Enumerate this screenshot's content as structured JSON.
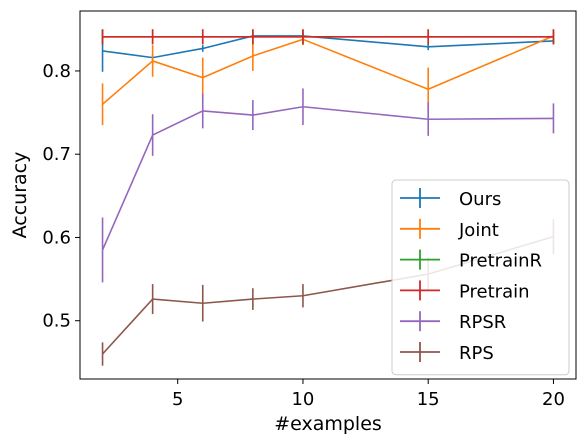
{
  "chart_data": {
    "type": "line",
    "xlabel": "#examples",
    "ylabel": "Accuracy",
    "xlim": [
      1.1,
      20.9
    ],
    "ylim": [
      0.43,
      0.872
    ],
    "xticks": [
      5,
      10,
      15,
      20
    ],
    "yticks": [
      0.5,
      0.6,
      0.7,
      0.8
    ],
    "xtick_labels": [
      "5",
      "10",
      "15",
      "20"
    ],
    "ytick_labels": [
      "0.5",
      "0.6",
      "0.7",
      "0.8"
    ],
    "grid": false,
    "legend_position": "lower-right",
    "x": [
      2,
      4,
      6,
      8,
      10,
      15,
      20
    ],
    "series": [
      {
        "name": "Ours",
        "color": "#1f77b4",
        "values": [
          0.824,
          0.816,
          0.827,
          0.842,
          0.842,
          0.829,
          0.836
        ],
        "errors": [
          0.025,
          0.004,
          0.004,
          0.004,
          0.004,
          0.004,
          0.004
        ]
      },
      {
        "name": "Joint",
        "color": "#ff7f0e",
        "values": [
          0.76,
          0.812,
          0.792,
          0.818,
          0.838,
          0.778,
          0.842
        ],
        "errors": [
          0.025,
          0.019,
          0.024,
          0.018,
          0.007,
          0.026,
          0.005
        ]
      },
      {
        "name": "PretrainR",
        "color": "#2ca02c",
        "values": [
          0.841,
          0.841,
          0.841,
          0.841,
          0.841,
          0.841,
          0.841
        ],
        "errors": [
          0.009,
          0.009,
          0.009,
          0.009,
          0.009,
          0.009,
          0.009
        ]
      },
      {
        "name": "Pretrain",
        "color": "#d62728",
        "values": [
          0.841,
          0.841,
          0.841,
          0.841,
          0.841,
          0.841,
          0.841
        ],
        "errors": [
          0.009,
          0.009,
          0.009,
          0.009,
          0.009,
          0.009,
          0.009
        ]
      },
      {
        "name": "RPSR",
        "color": "#9467bd",
        "values": [
          0.585,
          0.723,
          0.752,
          0.747,
          0.757,
          0.742,
          0.743
        ],
        "errors": [
          0.039,
          0.025,
          0.021,
          0.018,
          0.022,
          0.02,
          0.018
        ]
      },
      {
        "name": "RPS",
        "color": "#8c564b",
        "values": [
          0.46,
          0.526,
          0.521,
          0.526,
          0.53,
          0.556,
          0.601
        ],
        "errors": [
          0.014,
          0.018,
          0.022,
          0.013,
          0.014,
          0.02,
          0.021
        ]
      }
    ]
  }
}
